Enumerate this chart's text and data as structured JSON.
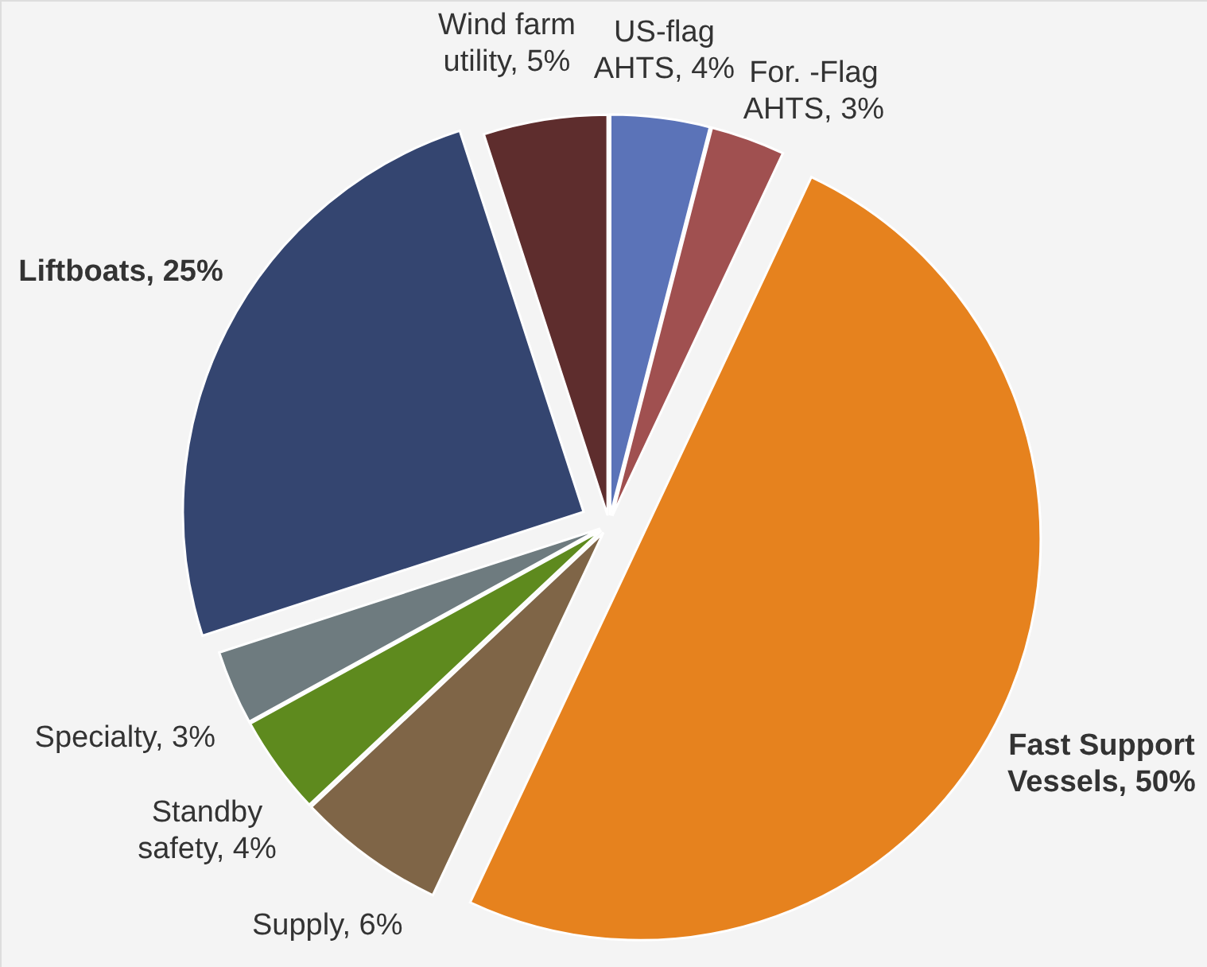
{
  "chart_data": {
    "type": "pie",
    "categories": [
      "US-flag AHTS",
      "For. -Flag AHTS",
      "Fast Support Vessels",
      "Supply",
      "Standby safety",
      "Specialty",
      "Liftboats",
      "Wind farm utility"
    ],
    "values": [
      4,
      3,
      50,
      6,
      4,
      3,
      25,
      5
    ],
    "colors": [
      "#5b73b8",
      "#a05050",
      "#e6821e",
      "#7f6547",
      "#5e8a1e",
      "#6e7b7f",
      "#344570",
      "#5e2d2d"
    ],
    "value_labels": [
      "4%",
      "3%",
      "50%",
      "6%",
      "4%",
      "3%",
      "25%",
      "5%"
    ]
  }
}
